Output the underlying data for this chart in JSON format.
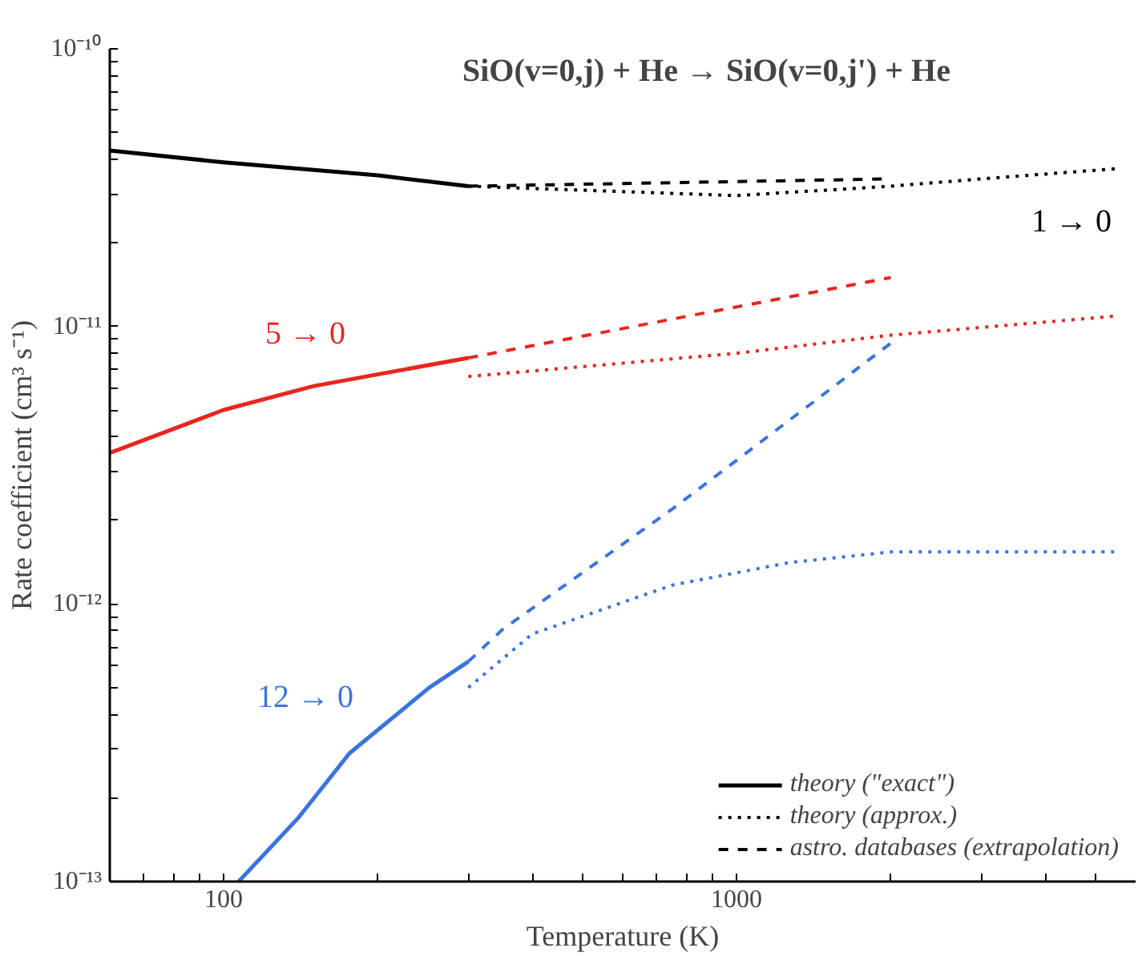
{
  "chart_data": {
    "type": "line",
    "xlabel": "Temperature (K)",
    "ylabel": "Rate coefficient (cm³ s⁻¹)",
    "log": "xy",
    "grid": false,
    "legend": "bottom right",
    "marker": "none",
    "xlim": [
      60,
      6000
    ],
    "ylim": [
      1e-13,
      1e-10
    ],
    "xticks": [
      {
        "value": 60,
        "label": null
      },
      {
        "value": 70,
        "label": null
      },
      {
        "value": 80,
        "label": null
      },
      {
        "value": 90,
        "label": null
      },
      100,
      {
        "value": 200,
        "label": null
      },
      {
        "value": 300,
        "label": null
      },
      {
        "value": 400,
        "label": null
      },
      {
        "value": 500,
        "label": null
      },
      {
        "value": 600,
        "label": null
      },
      {
        "value": 700,
        "label": null
      },
      {
        "value": 800,
        "label": null
      },
      {
        "value": 900,
        "label": null
      },
      1000,
      {
        "value": 2000,
        "label": null
      },
      {
        "value": 3000,
        "label": null
      },
      {
        "value": 4000,
        "label": null
      },
      {
        "value": 5000,
        "label": null
      }
    ],
    "yticks": [
      {
        "value": 1e-13,
        "label": "10⁻¹³"
      },
      {
        "value": 2e-13,
        "label": null
      },
      {
        "value": 3e-13,
        "label": null
      },
      {
        "value": 4e-13,
        "label": null
      },
      {
        "value": 5e-13,
        "label": null
      },
      {
        "value": 6e-13,
        "label": null
      },
      {
        "value": 7e-13,
        "label": null
      },
      {
        "value": 8e-13,
        "label": null
      },
      {
        "value": 9e-13,
        "label": null
      },
      {
        "value": 1e-12,
        "label": "10⁻¹²"
      },
      {
        "value": 2e-12,
        "label": null
      },
      {
        "value": 3e-12,
        "label": null
      },
      {
        "value": 4e-12,
        "label": null
      },
      {
        "value": 5e-12,
        "label": null
      },
      {
        "value": 6e-12,
        "label": null
      },
      {
        "value": 7e-12,
        "label": null
      },
      {
        "value": 8e-12,
        "label": null
      },
      {
        "value": 9e-12,
        "label": null
      },
      {
        "value": 1e-11,
        "label": "10⁻¹¹"
      },
      {
        "value": 2e-11,
        "label": null
      },
      {
        "value": 3e-11,
        "label": null
      },
      {
        "value": 4e-11,
        "label": null
      },
      {
        "value": 5e-11,
        "label": null
      },
      {
        "value": 6e-11,
        "label": null
      },
      {
        "value": 7e-11,
        "label": null
      },
      {
        "value": 8e-11,
        "label": null
      },
      {
        "value": 9e-11,
        "label": null
      },
      {
        "value": 1e-10,
        "label": "10⁻¹⁰"
      }
    ],
    "series": [
      {
        "name": "theory (\"exact\")",
        "color": "#000000",
        "line_style": "solid",
        "x": [
          60,
          100,
          200,
          300
        ],
        "values": [
          4.3e-11,
          3.9e-11,
          3.5e-11,
          3.2e-11
        ]
      },
      {
        "name": "theory (approx.)",
        "color": "#000000",
        "line_style": "dotted",
        "x": [
          300,
          1000,
          2000,
          3000,
          5500
        ],
        "values": [
          3.2e-11,
          2.96e-11,
          3.2e-11,
          3.4e-11,
          3.7e-11
        ]
      },
      {
        "name": "astro. databases (extrapolation)",
        "color": "#000000",
        "line_style": "dashed",
        "x": [
          300,
          2000
        ],
        "values": [
          3.2e-11,
          3.4e-11
        ]
      },
      {
        "color": "#e8261f",
        "line_style": "solid",
        "x": [
          60,
          100,
          150,
          300
        ],
        "values": [
          3.5e-12,
          5e-12,
          6.1e-12,
          7.7e-12
        ]
      },
      {
        "color": "#e8261f",
        "line_style": "dotted",
        "x": [
          300,
          1000,
          2000,
          5500
        ],
        "values": [
          6.6e-12,
          8e-12,
          9.3e-12,
          1.09e-11
        ]
      },
      {
        "color": "#e8261f",
        "line_style": "dashed",
        "x": [
          300,
          2000
        ],
        "values": [
          7.7e-12,
          1.5e-11
        ]
      },
      {
        "color": "#3a74e0",
        "line_style": "solid",
        "x": [
          107,
          140,
          176,
          252,
          300
        ],
        "values": [
          1e-13,
          1.7e-13,
          2.9e-13,
          5e-13,
          6.2e-13
        ]
      },
      {
        "color": "#3a74e0",
        "line_style": "dotted",
        "x": [
          300,
          400,
          750,
          1270,
          2000,
          5500
        ],
        "values": [
          5e-13,
          7.8e-13,
          1.17e-12,
          1.41e-12,
          1.54e-12,
          1.54e-12
        ]
      },
      {
        "color": "#3a74e0",
        "line_style": "dashed",
        "x": [
          300,
          350,
          750,
          2000
        ],
        "values": [
          6.2e-13,
          8.1e-13,
          2.2e-12,
          8.7e-12
        ]
      }
    ],
    "annotations": [
      "SiO(v=0,j) + He → SiO(v=0,j') + He",
      "1 → 0",
      "5 → 0",
      "12 → 0"
    ]
  }
}
